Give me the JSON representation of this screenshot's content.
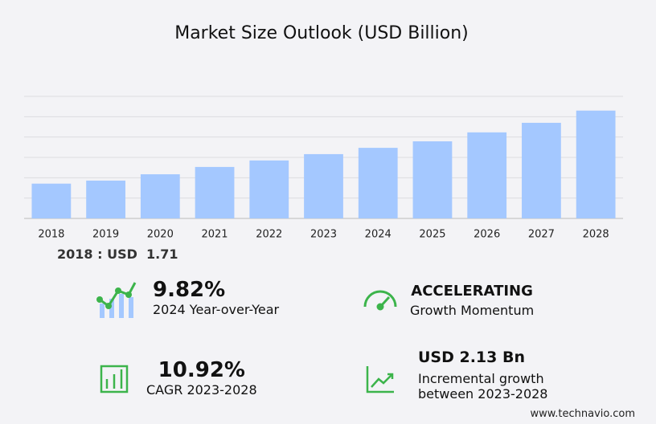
{
  "chart_data": {
    "type": "bar",
    "title": "Market Size Outlook (USD Billion)",
    "categories": [
      "2018",
      "2019",
      "2020",
      "2021",
      "2022",
      "2023",
      "2024",
      "2025",
      "2026",
      "2027",
      "2028"
    ],
    "values": [
      1.71,
      1.86,
      2.17,
      2.53,
      2.85,
      3.16,
      3.47,
      3.79,
      4.23,
      4.7,
      5.3
    ],
    "color": "#a4c8ff",
    "ylim": [
      0,
      6
    ],
    "yticks": [
      0,
      1,
      2,
      3,
      4,
      5,
      6
    ],
    "grid": true,
    "base_label": "2018 : USD"
  },
  "kpis": [
    {
      "value": "9.82%",
      "label": "2024 Year-over-Year"
    },
    {
      "value": "ACCELERATING",
      "label": "Growth Momentum"
    },
    {
      "value": "10.92%",
      "label": "CAGR 2023-2028"
    },
    {
      "value": "USD 2.13 Bn",
      "label": "Incremental growth",
      "label2": "between 2023-2028"
    }
  ],
  "footer": "www.technavio.com"
}
